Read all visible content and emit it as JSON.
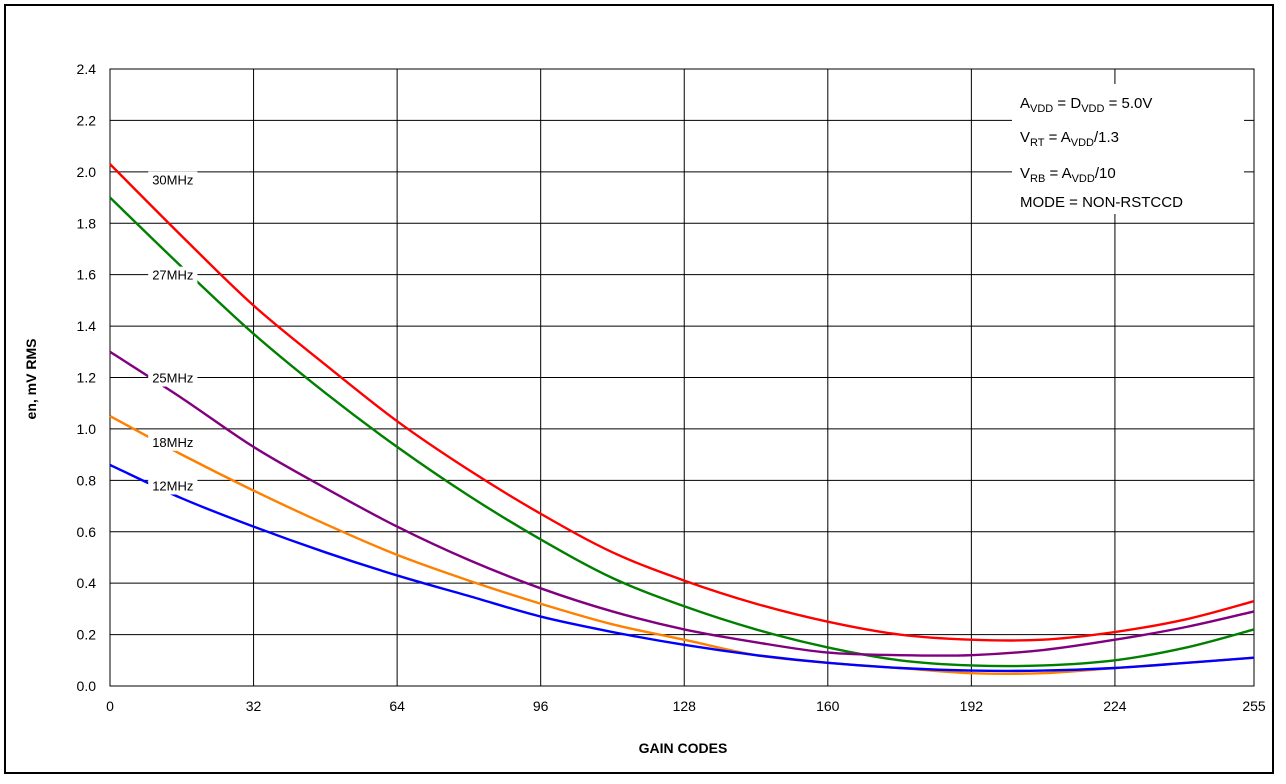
{
  "chart_data": {
    "type": "line",
    "xlabel": "GAIN CODES",
    "ylabel": "en, mV RMS",
    "xlim": [
      0,
      255
    ],
    "ylim": [
      0,
      2.4
    ],
    "x_ticks": [
      "0",
      "32",
      "64",
      "96",
      "128",
      "160",
      "192",
      "224",
      "255"
    ],
    "x_tick_values": [
      0,
      32,
      64,
      96,
      128,
      160,
      192,
      224,
      255
    ],
    "y_ticks": [
      "0.0",
      "0.2",
      "0.4",
      "0.6",
      "0.8",
      "1.0",
      "1.2",
      "1.4",
      "1.6",
      "1.8",
      "2.0",
      "2.2",
      "2.4"
    ],
    "y_tick_values": [
      0,
      0.2,
      0.4,
      0.6,
      0.8,
      1.0,
      1.2,
      1.4,
      1.6,
      1.8,
      2.0,
      2.2,
      2.4
    ],
    "grid": true,
    "x": [
      0,
      16,
      32,
      48,
      64,
      80,
      96,
      112,
      128,
      144,
      160,
      176,
      192,
      208,
      224,
      240,
      255
    ],
    "series": [
      {
        "name": "30MHz",
        "color": "#ff0000",
        "label_x": 14,
        "label_y": 1.97,
        "values": [
          2.03,
          1.75,
          1.48,
          1.25,
          1.03,
          0.84,
          0.67,
          0.52,
          0.41,
          0.32,
          0.25,
          0.2,
          0.18,
          0.18,
          0.21,
          0.26,
          0.33
        ]
      },
      {
        "name": "27MHz",
        "color": "#008000",
        "label_x": 14,
        "label_y": 1.6,
        "values": [
          1.9,
          1.63,
          1.37,
          1.14,
          0.93,
          0.74,
          0.57,
          0.42,
          0.31,
          0.22,
          0.15,
          0.1,
          0.08,
          0.08,
          0.1,
          0.15,
          0.22
        ]
      },
      {
        "name": "25MHz",
        "color": "#800080",
        "label_x": 14,
        "label_y": 1.2,
        "values": [
          1.3,
          1.12,
          0.93,
          0.77,
          0.62,
          0.49,
          0.38,
          0.29,
          0.22,
          0.17,
          0.13,
          0.12,
          0.12,
          0.14,
          0.18,
          0.23,
          0.29
        ]
      },
      {
        "name": "18MHz",
        "color": "#ff8000",
        "label_x": 14,
        "label_y": 0.95,
        "values": [
          1.05,
          0.9,
          0.76,
          0.63,
          0.51,
          0.41,
          0.32,
          0.24,
          0.18,
          0.12,
          0.09,
          0.07,
          0.05,
          0.05,
          0.07,
          0.09,
          0.11
        ]
      },
      {
        "name": "12MHz",
        "color": "#0000ff",
        "label_x": 14,
        "label_y": 0.78,
        "values": [
          0.86,
          0.73,
          0.62,
          0.52,
          0.43,
          0.35,
          0.27,
          0.21,
          0.16,
          0.12,
          0.09,
          0.07,
          0.06,
          0.06,
          0.07,
          0.09,
          0.11
        ]
      }
    ],
    "annotations": {
      "line1": {
        "a": "A",
        "a_sub": "VDD",
        "eq": " = D",
        "d_sub": "VDD",
        "rest": " = 5.0V"
      },
      "line2": {
        "v": "V",
        "v_sub": "RT",
        "eq": " = A",
        "a_sub": "VDD",
        "rest": "/1.3"
      },
      "line3": {
        "v": "V",
        "v_sub": "RB",
        "eq": " = A",
        "a_sub": "VDD",
        "rest": "/10"
      },
      "line4": "MODE = NON-RSTCCD"
    }
  }
}
